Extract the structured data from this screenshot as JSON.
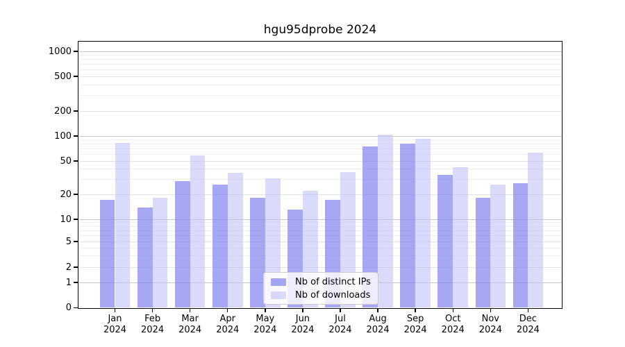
{
  "title": "hgu95dprobe 2024",
  "chart_data": {
    "type": "bar",
    "title": "hgu95dprobe 2024",
    "categories": [
      "Jan",
      "Feb",
      "Mar",
      "Apr",
      "May",
      "Jun",
      "Jul",
      "Aug",
      "Sep",
      "Oct",
      "Nov",
      "Dec"
    ],
    "year_label": "2024",
    "series": [
      {
        "name": "Nb of distinct IPs",
        "color": "rgba(130,130,240,0.70)",
        "values": [
          17,
          14,
          29,
          26,
          18,
          13,
          17,
          75,
          81,
          34,
          18,
          27
        ]
      },
      {
        "name": "Nb of downloads",
        "color": "rgba(193,193,246,0.60)",
        "values": [
          82,
          18,
          58,
          36,
          31,
          22,
          37,
          104,
          93,
          42,
          26,
          63
        ]
      }
    ],
    "y_axis": {
      "scale": "log-like",
      "ticks": [
        0,
        1,
        2,
        5,
        10,
        20,
        50,
        100,
        200,
        500,
        1000
      ],
      "tick_labels": [
        "0",
        "1",
        "2",
        "5",
        "10",
        "20",
        "50",
        "100",
        "200",
        "500",
        "1000"
      ],
      "minor_gridlines": [
        3,
        4,
        6,
        7,
        8,
        9,
        30,
        40,
        60,
        70,
        80,
        90,
        300,
        400,
        600,
        700,
        800,
        900
      ]
    },
    "legend": {
      "position": "bottom-center",
      "items": [
        "Nb of distinct IPs",
        "Nb of downloads"
      ]
    },
    "grid": true
  }
}
